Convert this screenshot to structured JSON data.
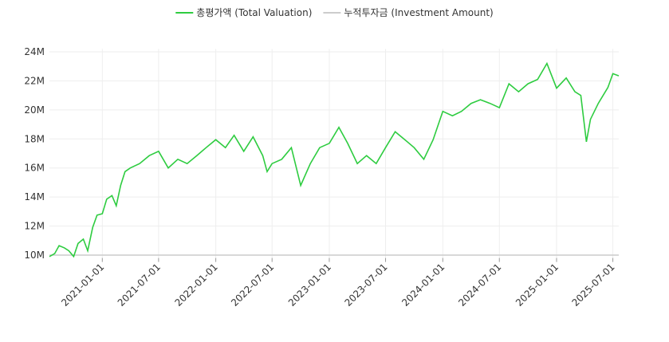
{
  "chart_data": {
    "type": "line",
    "x": [
      "2020-07-15",
      "2020-08-01",
      "2020-08-15",
      "2020-09-01",
      "2020-09-15",
      "2020-10-01",
      "2020-10-15",
      "2020-11-01",
      "2020-11-15",
      "2020-12-01",
      "2020-12-15",
      "2021-01-01",
      "2021-01-15",
      "2021-02-01",
      "2021-02-15",
      "2021-03-01",
      "2021-03-15",
      "2021-04-01",
      "2021-05-01",
      "2021-06-01",
      "2021-07-01",
      "2021-08-01",
      "2021-09-01",
      "2021-10-01",
      "2021-11-01",
      "2021-12-01",
      "2022-01-01",
      "2022-02-01",
      "2022-03-01",
      "2022-04-01",
      "2022-05-01",
      "2022-06-01",
      "2022-06-15",
      "2022-07-01",
      "2022-08-01",
      "2022-09-01",
      "2022-10-01",
      "2022-11-01",
      "2022-12-01",
      "2023-01-01",
      "2023-02-01",
      "2023-03-01",
      "2023-04-01",
      "2023-05-01",
      "2023-06-01",
      "2023-07-01",
      "2023-08-01",
      "2023-09-01",
      "2023-10-01",
      "2023-11-01",
      "2023-12-01",
      "2024-01-01",
      "2024-02-01",
      "2024-03-01",
      "2024-04-01",
      "2024-05-01",
      "2024-06-01",
      "2024-07-01",
      "2024-08-01",
      "2024-09-01",
      "2024-10-01",
      "2024-11-01",
      "2024-12-01",
      "2025-01-01",
      "2025-02-01",
      "2025-03-01",
      "2025-03-20",
      "2025-04-07",
      "2025-04-20",
      "2025-05-15",
      "2025-06-15",
      "2025-07-01",
      "2025-07-20"
    ],
    "series": [
      {
        "name": "총평가액 (Total Valuation)",
        "color": "#2ecc40",
        "values": [
          9.9,
          10.1,
          10.65,
          10.5,
          10.3,
          9.9,
          10.8,
          11.1,
          10.3,
          11.9,
          12.75,
          12.85,
          13.85,
          14.1,
          13.4,
          14.8,
          15.75,
          16.0,
          16.3,
          16.85,
          17.15,
          16.0,
          16.6,
          16.3,
          16.85,
          17.4,
          17.95,
          17.4,
          18.25,
          17.15,
          18.15,
          16.85,
          15.75,
          16.3,
          16.6,
          17.4,
          14.8,
          16.3,
          17.4,
          17.7,
          18.8,
          17.7,
          16.3,
          16.85,
          16.3,
          17.4,
          18.5,
          17.95,
          17.4,
          16.6,
          17.95,
          19.9,
          19.6,
          19.9,
          20.45,
          20.7,
          20.45,
          20.15,
          21.8,
          21.25,
          21.8,
          22.1,
          23.2,
          21.5,
          22.2,
          21.25,
          21.0,
          17.8,
          19.35,
          20.45,
          21.55,
          22.5,
          22.35
        ]
      },
      {
        "name": "누적투자금 (Investment Amount)",
        "color": "#cccccc",
        "values": [
          10,
          10,
          10,
          10,
          10,
          10,
          10,
          10,
          10,
          10,
          10,
          10,
          10,
          10,
          10,
          10,
          10,
          10,
          10,
          10,
          10,
          10,
          10,
          10,
          10,
          10,
          10,
          10,
          10,
          10,
          10,
          10,
          10,
          10,
          10,
          10,
          10,
          10,
          10,
          10,
          10,
          10,
          10,
          10,
          10,
          10,
          10,
          10,
          10,
          10,
          10,
          10,
          10,
          10,
          10,
          10,
          10,
          10,
          10,
          10,
          10,
          10,
          10,
          10,
          10,
          10,
          10,
          10,
          10,
          10,
          10,
          10,
          10
        ]
      }
    ],
    "xlim": [
      "2020-07-15",
      "2025-07-20"
    ],
    "xticks": [
      "2021-01-01",
      "2021-07-01",
      "2022-01-01",
      "2022-07-01",
      "2023-01-01",
      "2023-07-01",
      "2024-01-01",
      "2024-07-01",
      "2025-01-01",
      "2025-07-01"
    ],
    "ylim": [
      9.8,
      24.2
    ],
    "yticks": [
      {
        "value": 10,
        "label": "10M"
      },
      {
        "value": 12,
        "label": "12M"
      },
      {
        "value": 14,
        "label": "14M"
      },
      {
        "value": 16,
        "label": "16M"
      },
      {
        "value": 18,
        "label": "18M"
      },
      {
        "value": 20,
        "label": "20M"
      },
      {
        "value": 22,
        "label": "22M"
      },
      {
        "value": 24,
        "label": "24M"
      }
    ],
    "grid": true,
    "legend": "top"
  }
}
